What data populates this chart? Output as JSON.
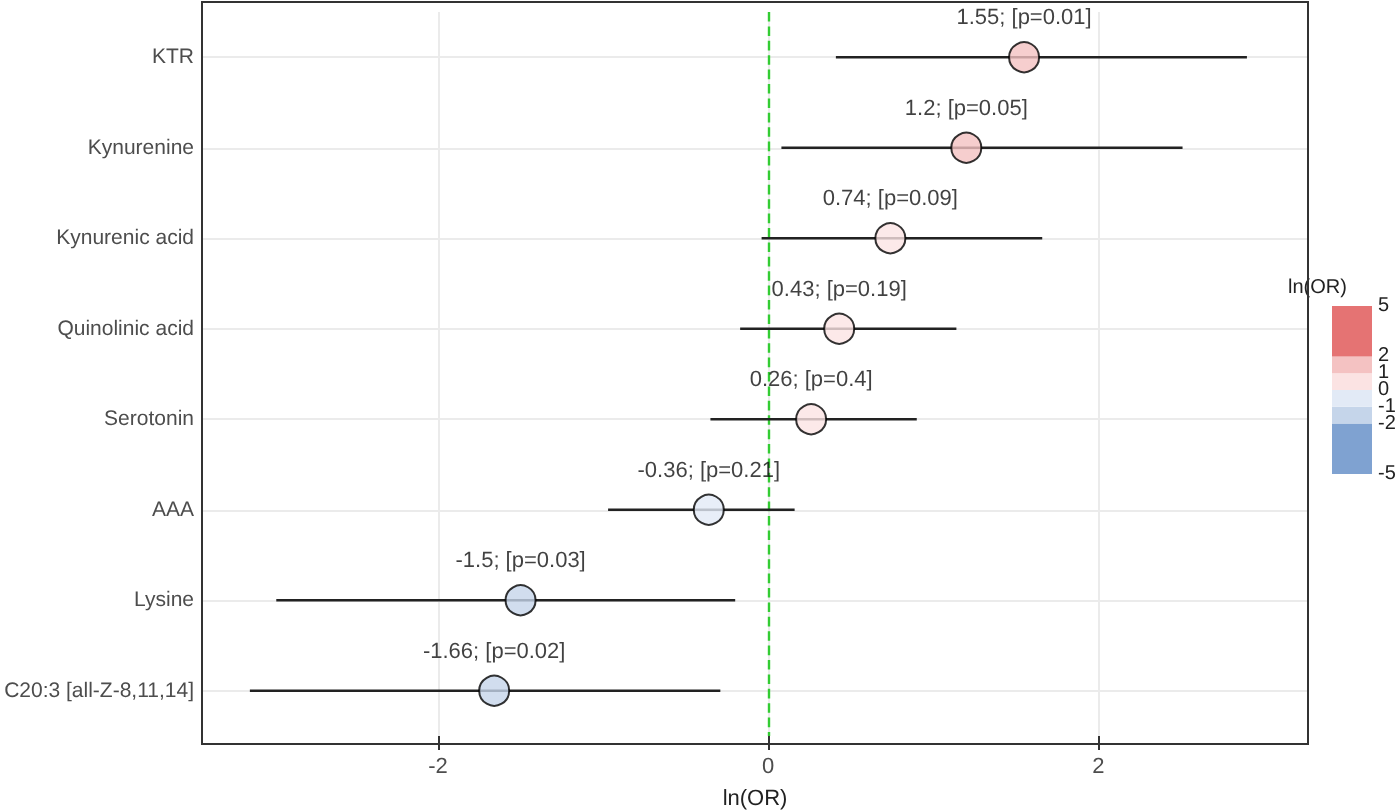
{
  "chart_data": {
    "type": "scatter",
    "orientation": "horizontal",
    "xlabel": "ln(OR)",
    "clabel": "ln(OR)",
    "categories": [
      "KTR",
      "Kynurenine",
      "Kynurenic acid",
      "Quinolinic acid",
      "Serotonin",
      "AAA",
      "Lysine",
      "C20:3 [all-Z-8,11,14]"
    ],
    "values": [
      1.55,
      1.2,
      0.74,
      0.43,
      0.26,
      -0.36,
      -1.5,
      -1.66
    ],
    "cvalues": [
      1.55,
      1.2,
      0.74,
      0.43,
      0.26,
      -0.36,
      -1.5,
      -1.66
    ],
    "errors": [
      [
        0.41,
        2.9
      ],
      [
        0.08,
        2.51
      ],
      [
        -0.04,
        1.66
      ],
      [
        -0.17,
        1.14
      ],
      [
        -0.35,
        0.9
      ],
      [
        -0.97,
        0.16
      ],
      [
        -2.98,
        -0.2
      ],
      [
        -3.14,
        -0.29
      ]
    ],
    "value_labels": [
      "1.55; [p=0.01]",
      "1.2; [p=0.05]",
      "0.74; [p=0.09]",
      "0.43; [p=0.19]",
      "0.26; [p=0.4]",
      "-0.36; [p=0.21]",
      "-1.5; [p=0.03]",
      "-1.66; [p=0.02]"
    ],
    "clim": [
      -5,
      5
    ],
    "cticks": [
      -5,
      -2,
      -1,
      0,
      1,
      2,
      5
    ],
    "xlim": [
      -3.43,
      3.27
    ],
    "xticks": [
      -2,
      0,
      2
    ],
    "ref_lines": [
      {
        "axis": "x",
        "value": 0,
        "color": "#33cc33",
        "line_style": "dashed"
      }
    ],
    "grid": true,
    "marker": "circle"
  }
}
